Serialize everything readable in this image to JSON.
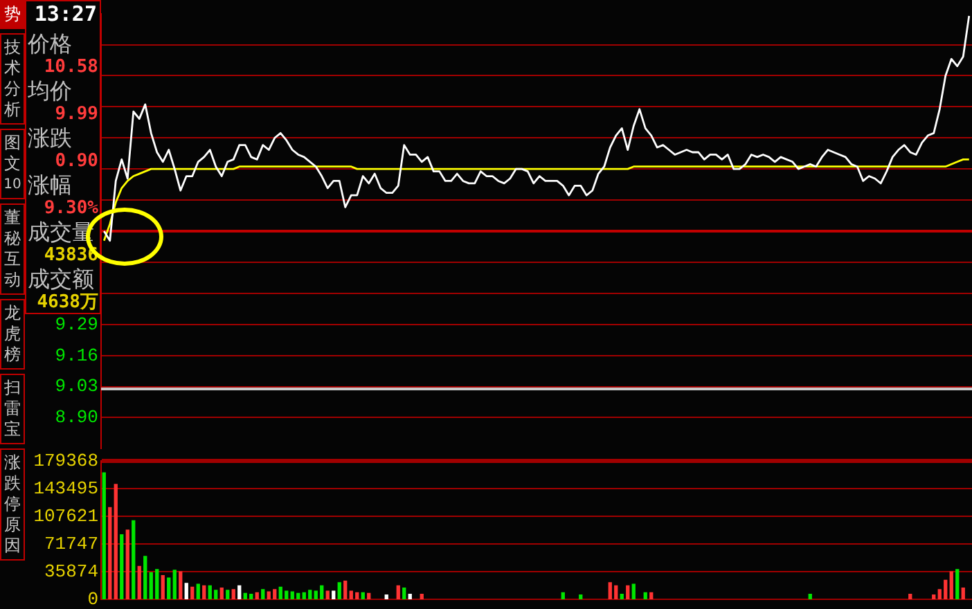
{
  "chart_data": [
    {
      "type": "other",
      "annotations": [
        "势",
        "技术分析",
        "图文10",
        "董秘互动",
        "龙虎榜",
        "扫雷宝",
        "涨跌停原因"
      ]
    },
    {
      "type": "other",
      "annotations": [
        "13:27",
        "价格",
        "10.58",
        "均价",
        "9.99",
        "涨跌",
        "0.90",
        "涨幅",
        "9.30%",
        "成交量",
        "43836",
        "成交额",
        "4638万"
      ]
    },
    {
      "type": "line",
      "ylim": [
        8.77,
        10.59
      ],
      "categories": [
        null,
        null,
        null,
        null,
        null,
        null,
        null,
        null,
        null,
        null,
        null,
        null,
        null,
        null,
        null,
        null,
        null,
        null,
        null,
        null,
        null,
        null,
        null,
        null,
        null,
        null,
        null,
        null,
        null,
        null,
        null,
        null,
        null,
        null,
        null,
        null,
        null,
        null,
        null,
        null,
        null,
        null,
        null,
        null,
        null,
        null,
        null,
        null,
        null,
        null,
        null,
        null,
        null,
        null,
        null,
        null,
        null,
        null,
        null,
        null,
        null,
        null,
        null,
        null,
        null,
        null,
        null,
        null,
        null,
        null,
        null,
        null,
        null,
        null,
        null,
        null,
        null,
        null,
        null,
        null,
        null,
        null,
        null,
        null,
        null,
        null,
        null,
        null,
        null,
        null,
        null,
        null,
        null,
        null,
        null,
        null,
        null,
        null,
        null,
        null,
        null,
        null,
        null,
        null,
        null,
        null,
        null,
        null,
        null,
        null,
        null,
        null,
        null,
        null,
        null,
        null,
        null,
        null,
        null,
        null,
        null,
        null,
        null,
        null,
        null,
        null,
        null,
        null,
        null,
        null,
        null,
        null,
        null,
        null,
        null,
        null,
        null,
        null,
        null,
        null,
        null,
        null,
        null,
        null,
        null,
        null,
        null,
        null
      ],
      "yticks": [
        {
          "value": 10.46,
          "label": null
        },
        {
          "value": 10.33,
          "label": null
        },
        {
          "value": 10.2,
          "label": null
        },
        {
          "value": 10.07,
          "label": null
        },
        {
          "value": 9.94,
          "label": null
        },
        {
          "value": 9.81,
          "label": null
        },
        {
          "value": 9.68,
          "label": null
        },
        {
          "value": 9.55,
          "label": null
        },
        {
          "value": 9.42,
          "label": null
        },
        9.29,
        9.16,
        9.03,
        {
          "value": 8.9,
          "label": "8.90"
        }
      ],
      "grid": "y",
      "tick_labels": "y",
      "ref_lines": [
        {
          "axis": "y",
          "value": 9.68,
          "color": "#c00000",
          "line_style": "solid"
        },
        {
          "axis": "y",
          "value": 9.02,
          "color": "#c8c8c8",
          "line_style": "solid"
        }
      ],
      "series": [
        {
          "color": "#ffffff",
          "values": [
            9.68,
            9.64,
            9.89,
            9.98,
            9.9,
            10.18,
            10.15,
            10.21,
            10.09,
            10.01,
            9.97,
            10.02,
            9.94,
            9.85,
            9.91,
            9.91,
            9.97,
            9.99,
            10.02,
            9.95,
            9.91,
            9.97,
            9.98,
            10.04,
            10.04,
            9.99,
            9.98,
            10.04,
            10.02,
            10.07,
            10.09,
            10.06,
            10.02,
            10.0,
            9.99,
            9.97,
            9.95,
            9.91,
            9.86,
            9.89,
            9.89,
            9.78,
            9.83,
            9.83,
            9.91,
            9.88,
            9.92,
            9.86,
            9.84,
            9.84,
            9.87,
            10.04,
            10.0,
            10.0,
            9.97,
            9.99,
            9.93,
            9.93,
            9.89,
            9.89,
            9.92,
            9.89,
            9.88,
            9.88,
            9.93,
            9.91,
            9.91,
            9.89,
            9.88,
            9.9,
            9.94,
            9.94,
            9.93,
            9.88,
            9.91,
            9.89,
            9.89,
            9.89,
            9.87,
            9.83,
            9.87,
            9.87,
            9.83,
            9.85,
            9.92,
            9.95,
            10.03,
            10.08,
            10.11,
            10.02,
            10.12,
            10.19,
            10.11,
            10.08,
            10.03,
            10.04,
            10.02,
            10.0,
            10.01,
            10.02,
            10.01,
            10.01,
            9.98,
            10.0,
            10.0,
            9.98,
            10.0,
            9.94,
            9.94,
            9.96,
            10.0,
            9.99,
            10.0,
            9.99,
            9.97,
            9.99,
            9.98,
            9.97,
            9.94,
            9.95,
            9.96,
            9.95,
            9.99,
            10.02,
            10.01,
            10.0,
            9.99,
            9.96,
            9.95,
            9.89,
            9.91,
            9.9,
            9.88,
            9.93,
            9.99,
            10.02,
            10.04,
            10.01,
            10.0,
            10.05,
            10.08,
            10.09,
            10.19,
            10.33,
            10.4,
            10.37,
            10.41,
            10.58
          ]
        },
        {
          "color": "#ffff00",
          "values": [
            9.64,
            9.71,
            9.8,
            9.86,
            9.89,
            9.91,
            9.92,
            9.93,
            9.94,
            9.94,
            9.94,
            9.94,
            9.94,
            9.94,
            9.94,
            9.94,
            9.94,
            9.94,
            9.94,
            9.94,
            9.94,
            9.94,
            9.94,
            9.95,
            9.95,
            9.95,
            9.95,
            9.95,
            9.95,
            9.95,
            9.95,
            9.95,
            9.95,
            9.95,
            9.95,
            9.95,
            9.95,
            9.95,
            9.95,
            9.95,
            9.95,
            9.95,
            9.95,
            9.94,
            9.94,
            9.94,
            9.94,
            9.94,
            9.94,
            9.94,
            9.94,
            9.94,
            9.94,
            9.94,
            9.94,
            9.94,
            9.94,
            9.94,
            9.94,
            9.94,
            9.94,
            9.94,
            9.94,
            9.94,
            9.94,
            9.94,
            9.94,
            9.94,
            9.94,
            9.94,
            9.94,
            9.94,
            9.94,
            9.94,
            9.94,
            9.94,
            9.94,
            9.94,
            9.94,
            9.94,
            9.94,
            9.94,
            9.94,
            9.94,
            9.94,
            9.94,
            9.94,
            9.94,
            9.94,
            9.94,
            9.95,
            9.95,
            9.95,
            9.95,
            9.95,
            9.95,
            9.95,
            9.95,
            9.95,
            9.95,
            9.95,
            9.95,
            9.95,
            9.95,
            9.95,
            9.95,
            9.95,
            9.95,
            9.95,
            9.95,
            9.95,
            9.95,
            9.95,
            9.95,
            9.95,
            9.95,
            9.95,
            9.95,
            9.95,
            9.95,
            9.95,
            9.95,
            9.95,
            9.95,
            9.95,
            9.95,
            9.95,
            9.95,
            9.95,
            9.95,
            9.95,
            9.95,
            9.95,
            9.95,
            9.95,
            9.95,
            9.95,
            9.95,
            9.95,
            9.95,
            9.95,
            9.95,
            9.95,
            9.95,
            9.96,
            9.97,
            9.98,
            9.98
          ]
        }
      ]
    },
    {
      "type": "bar",
      "ylim": [
        0,
        179368
      ],
      "yticks": [
        0,
        35874,
        71747,
        107621,
        143495,
        179368
      ],
      "grid": "y",
      "tick_labels": "y",
      "categories": [
        null,
        null,
        null,
        null,
        null,
        null,
        null,
        null,
        null,
        null,
        null,
        null,
        null,
        null,
        null,
        null,
        null,
        null,
        null,
        null,
        null,
        null,
        null,
        null,
        null,
        null,
        null,
        null,
        null,
        null,
        null,
        null,
        null,
        null,
        null,
        null,
        null,
        null,
        null,
        null,
        null,
        null,
        null,
        null,
        null,
        null,
        null,
        null,
        null,
        null,
        null,
        null,
        null,
        null,
        null,
        null,
        null,
        null,
        null,
        null,
        null,
        null,
        null,
        null,
        null,
        null,
        null,
        null,
        null,
        null,
        null,
        null,
        null,
        null,
        null,
        null,
        null,
        null,
        null,
        null,
        null,
        null,
        null,
        null,
        null,
        null,
        null,
        null,
        null,
        null,
        null,
        null,
        null,
        null,
        null,
        null,
        null,
        null,
        null,
        null,
        null,
        null,
        null,
        null,
        null,
        null,
        null,
        null,
        null,
        null,
        null,
        null,
        null,
        null,
        null,
        null,
        null,
        null,
        null,
        null,
        null,
        null,
        null,
        null,
        null,
        null,
        null,
        null,
        null,
        null,
        null,
        null,
        null,
        null,
        null,
        null,
        null,
        null,
        null,
        null,
        null,
        null,
        null,
        null,
        null,
        null,
        null,
        null
      ],
      "values": [
        164000,
        119000,
        149000,
        84000,
        90000,
        102000,
        43000,
        56000,
        35000,
        39000,
        31000,
        28000,
        38000,
        36000,
        21000,
        16000,
        20000,
        18000,
        18000,
        12000,
        15000,
        12000,
        13000,
        18000,
        8000,
        7000,
        9000,
        13000,
        10000,
        13000,
        16000,
        11000,
        10000,
        8000,
        9000,
        12000,
        11000,
        18000,
        11000,
        11000,
        22000,
        24000,
        11000,
        9000,
        9000,
        8000,
        null,
        null,
        6000,
        null,
        18000,
        15000,
        7000,
        null,
        7000,
        null,
        null,
        null,
        null,
        null,
        null,
        null,
        null,
        null,
        null,
        null,
        null,
        null,
        null,
        null,
        null,
        null,
        null,
        null,
        null,
        null,
        null,
        null,
        9000,
        null,
        null,
        6000,
        null,
        null,
        null,
        null,
        22000,
        18000,
        7000,
        18000,
        20000,
        null,
        9000,
        9000,
        null,
        null,
        null,
        null,
        null,
        null,
        null,
        null,
        null,
        null,
        null,
        null,
        null,
        null,
        null,
        null,
        null,
        null,
        null,
        null,
        null,
        null,
        null,
        null,
        null,
        null,
        7000,
        null,
        null,
        null,
        null,
        null,
        null,
        null,
        null,
        null,
        null,
        null,
        null,
        null,
        null,
        null,
        null,
        7000,
        null,
        null,
        null,
        6000,
        13000,
        25000,
        36000,
        39000,
        15000,
        null
      ],
      "colors": [
        "#00e600",
        "#ff3333",
        "#ff3333",
        "#00e600",
        "#ff3333",
        "#00e600",
        "#ff3333",
        "#00e600",
        "#00e600",
        "#00e600",
        "#ff3333",
        "#00e600",
        "#00e600",
        "#ff3333",
        "#ffffff",
        "#ff3333",
        "#00e600",
        "#ff3333",
        "#00e600",
        "#00e600",
        "#ff3333",
        "#00e600",
        "#ff3333",
        "#ffffff",
        "#00e600",
        "#00e600",
        "#ff3333",
        "#00e600",
        "#ff3333",
        "#ff3333",
        "#00e600",
        "#00e600",
        "#00e600",
        "#00e600",
        "#00e600",
        "#00e600",
        "#00e600",
        "#00e600",
        "#ff3333",
        "#ffffff",
        "#00e600",
        "#ff3333",
        "#ff3333",
        "#ff3333",
        "#00e600",
        "#ff3333",
        "#ff3333",
        "#ff3333",
        "#ffffff",
        "#ff3333",
        "#ff3333",
        "#00e600",
        "#ffffff",
        "#ff3333",
        "#ff3333",
        "#ff3333",
        "#ff3333",
        "#ff3333",
        "#ff3333",
        "#ff3333",
        "#ff3333",
        "#ff3333",
        "#ff3333",
        "#ff3333",
        "#ff3333",
        "#ff3333",
        "#ff3333",
        "#ff3333",
        "#ff3333",
        "#ff3333",
        "#ff3333",
        "#ff3333",
        "#ff3333",
        "#ff3333",
        "#ff3333",
        "#ff3333",
        "#ff3333",
        "#ff3333",
        "#00e600",
        "#ff3333",
        "#ff3333",
        "#00e600",
        "#ff3333",
        "#ff3333",
        "#ff3333",
        "#ff3333",
        "#ff3333",
        "#ff3333",
        "#00e600",
        "#ff3333",
        "#00e600",
        "#ff3333",
        "#00e600",
        "#ff3333",
        "#ff3333",
        "#ff3333",
        "#ff3333",
        "#ff3333",
        "#ff3333",
        "#ff3333",
        "#ff3333",
        "#ff3333",
        "#ff3333",
        "#ff3333",
        "#ff3333",
        "#ff3333",
        "#ff3333",
        "#ff3333",
        "#ff3333",
        "#ff3333",
        "#ff3333",
        "#ff3333",
        "#ff3333",
        "#ff3333",
        "#ff3333",
        "#ff3333",
        "#ff3333",
        "#ff3333",
        "#ff3333",
        "#ff3333",
        "#00e600",
        "#ff3333",
        "#ff3333",
        "#ff3333",
        "#ff3333",
        "#ff3333",
        "#ff3333",
        "#ff3333",
        "#ff3333",
        "#ff3333",
        "#ff3333",
        "#ff3333",
        "#ff3333",
        "#ff3333",
        "#ff3333",
        "#ff3333",
        "#ff3333",
        "#ff3333",
        "#ff3333",
        "#ff3333",
        "#ff3333",
        "#ff3333",
        "#ff3333",
        "#ff3333",
        "#ff3333",
        "#00e600",
        "#ff3333",
        "#ff3333"
      ]
    }
  ]
}
